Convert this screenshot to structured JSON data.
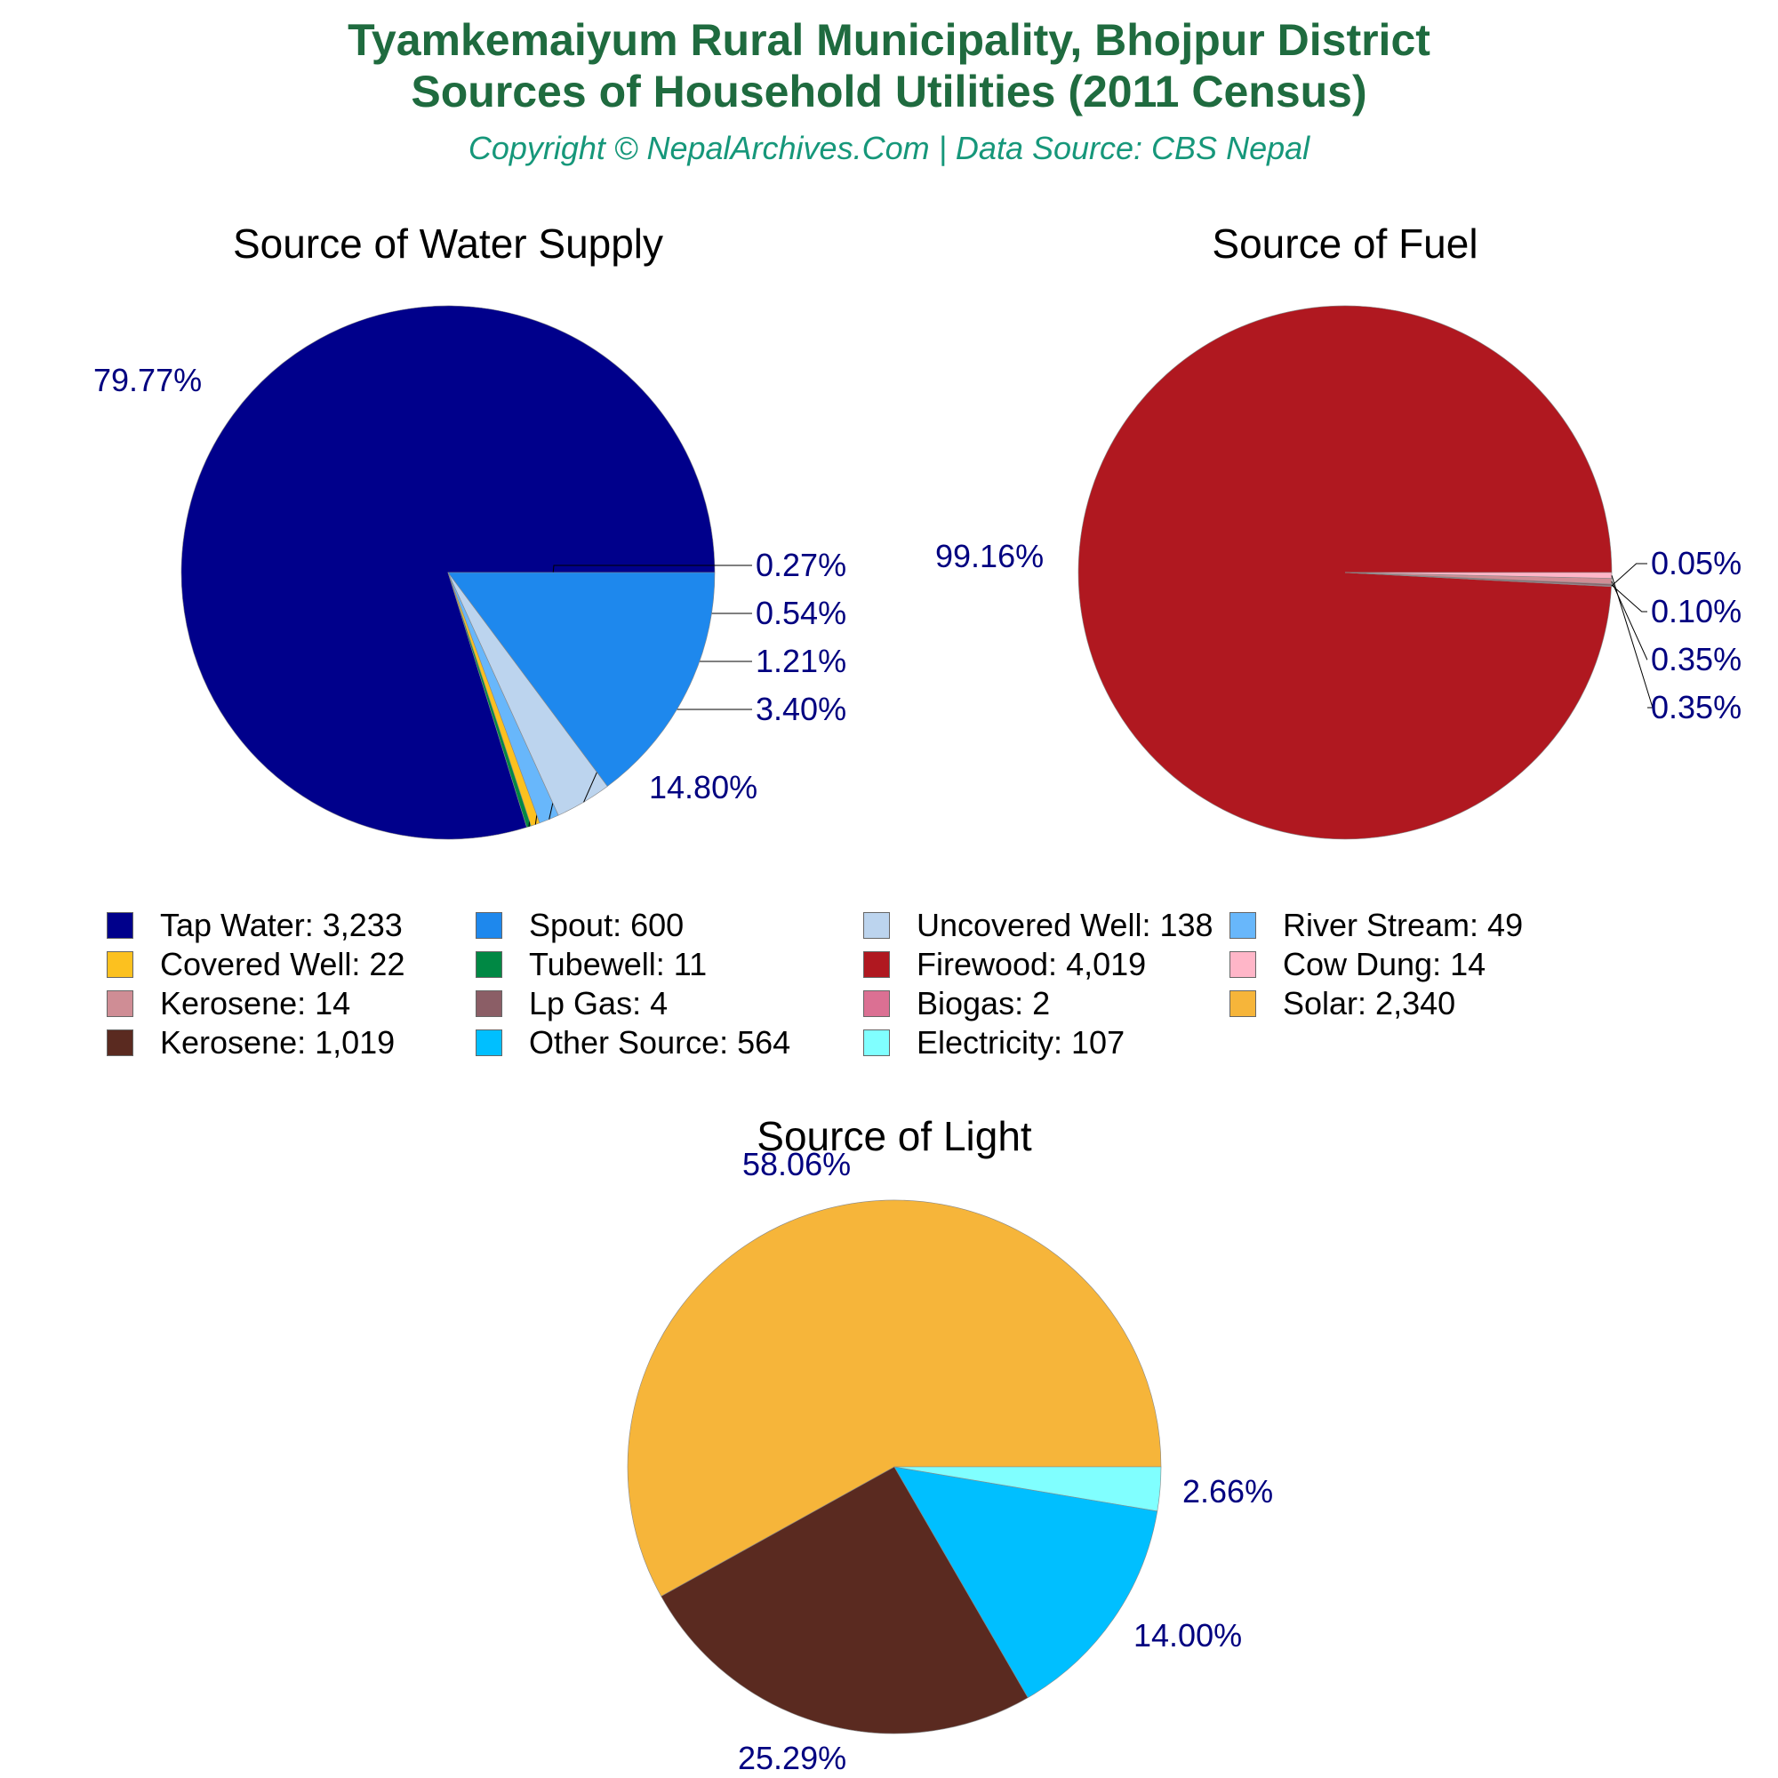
{
  "header": {
    "title_line1": "Tyamkemaiyum Rural Municipality, Bhojpur District",
    "title_line2": "Sources of Household Utilities (2011 Census)",
    "subtitle": "Copyright © NepalArchives.Com | Data Source: CBS Nepal"
  },
  "colors": {
    "title": "#1f6b3f",
    "subtitle": "#16977a",
    "pct_label": "#000080"
  },
  "chart_data": [
    {
      "type": "pie",
      "title": "Source of Water Supply",
      "slices": [
        {
          "label": "Tap Water",
          "value": 3233,
          "pct": "79.77%",
          "color": "#00008b"
        },
        {
          "label": "Tubewell",
          "value": 11,
          "pct": "0.27%",
          "color": "#008844"
        },
        {
          "label": "Covered Well",
          "value": 22,
          "pct": "0.54%",
          "color": "#fcc11f"
        },
        {
          "label": "River Stream",
          "value": 49,
          "pct": "1.21%",
          "color": "#68b7fb"
        },
        {
          "label": "Uncovered Well",
          "value": 138,
          "pct": "3.40%",
          "color": "#bcd4ee"
        },
        {
          "label": "Spout",
          "value": 600,
          "pct": "14.80%",
          "color": "#1e88ed"
        }
      ]
    },
    {
      "type": "pie",
      "title": "Source of Fuel",
      "slices": [
        {
          "label": "Firewood",
          "value": 4019,
          "pct": "99.16%",
          "color": "#b01820"
        },
        {
          "label": "Biogas",
          "value": 2,
          "pct": "0.05%",
          "color": "#db7093"
        },
        {
          "label": "Lp Gas",
          "value": 4,
          "pct": "0.10%",
          "color": "#8b5e66"
        },
        {
          "label": "Kerosene",
          "value": 14,
          "pct": "0.35%",
          "color": "#cf8d95"
        },
        {
          "label": "Cow Dung",
          "value": 14,
          "pct": "0.35%",
          "color": "#ffb6c8"
        }
      ]
    },
    {
      "type": "pie",
      "title": "Source of Light",
      "slices": [
        {
          "label": "Solar",
          "value": 2340,
          "pct": "58.06%",
          "color": "#f6b53a"
        },
        {
          "label": "Kerosene",
          "value": 1019,
          "pct": "25.29%",
          "color": "#5a2a20"
        },
        {
          "label": "Other Source",
          "value": 564,
          "pct": "14.00%",
          "color": "#00bfff"
        },
        {
          "label": "Electricity",
          "value": 107,
          "pct": "2.66%",
          "color": "#80ffff"
        }
      ]
    }
  ],
  "legend": {
    "rows": [
      [
        {
          "text": "Tap Water: 3,233",
          "color": "#00008b"
        },
        {
          "text": "Spout: 600",
          "color": "#1e88ed"
        },
        {
          "text": "Uncovered Well: 138",
          "color": "#bcd4ee"
        },
        {
          "text": "River Stream: 49",
          "color": "#68b7fb"
        }
      ],
      [
        {
          "text": "Covered Well: 22",
          "color": "#fcc11f"
        },
        {
          "text": "Tubewell: 11",
          "color": "#008844"
        },
        {
          "text": "Firewood: 4,019",
          "color": "#b01820"
        },
        {
          "text": "Cow Dung: 14",
          "color": "#ffb6c8"
        }
      ],
      [
        {
          "text": "Kerosene: 14",
          "color": "#cf8d95"
        },
        {
          "text": "Lp Gas: 4",
          "color": "#8b5e66"
        },
        {
          "text": "Biogas: 2",
          "color": "#db7093"
        },
        {
          "text": "Solar: 2,340",
          "color": "#f6b53a"
        }
      ],
      [
        {
          "text": "Kerosene: 1,019",
          "color": "#5a2a20"
        },
        {
          "text": "Other Source: 564",
          "color": "#00bfff"
        },
        {
          "text": "Electricity: 107",
          "color": "#80ffff"
        }
      ]
    ]
  }
}
